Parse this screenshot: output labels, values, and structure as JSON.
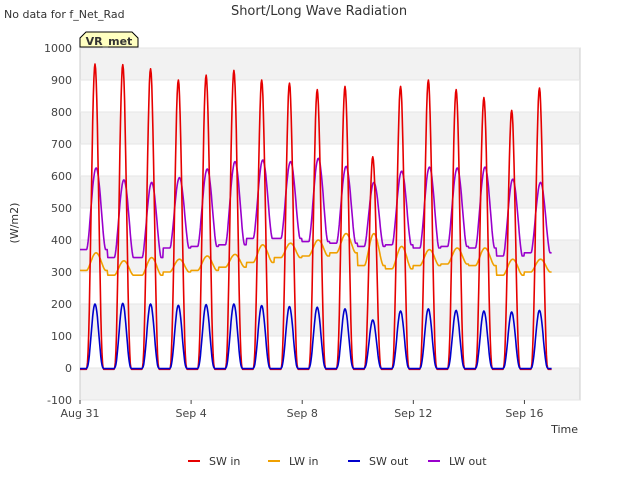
{
  "chart_data": {
    "type": "line",
    "title": "Short/Long Wave Radiation",
    "note": "No data for f_Net_Rad",
    "badge": "VR_met",
    "xlabel": "Time",
    "ylabel": "(W/m2)",
    "ylim": [
      -100,
      1000
    ],
    "yticks": [
      -100,
      0,
      100,
      200,
      300,
      400,
      500,
      600,
      700,
      800,
      900,
      1000
    ],
    "xlim": [
      "2023-08-31",
      "2023-09-18"
    ],
    "xticks": [
      "Aug 31",
      "Sep 4",
      "Sep 8",
      "Sep 12",
      "Sep 16"
    ],
    "grid": "horizontal bands",
    "legend_position": "bottom",
    "series": [
      {
        "name": "SW in",
        "color": "#e60000",
        "daily_peaks": [
          950,
          948,
          935,
          900,
          915,
          930,
          900,
          890,
          870,
          880,
          660,
          880,
          900,
          870,
          845,
          805,
          875
        ]
      },
      {
        "name": "LW in",
        "color": "#f0a000",
        "daily_peaks": [
          360,
          335,
          345,
          340,
          350,
          355,
          385,
          390,
          400,
          420,
          420,
          380,
          370,
          375,
          375,
          340,
          340
        ],
        "daily_mins": [
          305,
          290,
          290,
          300,
          305,
          315,
          330,
          345,
          350,
          360,
          320,
          310,
          320,
          325,
          320,
          290,
          300
        ]
      },
      {
        "name": "SW out",
        "color": "#0000cc",
        "daily_peaks": [
          200,
          202,
          200,
          196,
          198,
          200,
          195,
          192,
          190,
          185,
          150,
          178,
          185,
          180,
          178,
          175,
          180
        ]
      },
      {
        "name": "LW out",
        "color": "#9900cc",
        "daily_peaks": [
          625,
          588,
          580,
          595,
          622,
          645,
          650,
          645,
          655,
          630,
          580,
          615,
          628,
          625,
          628,
          590,
          580
        ],
        "daily_mins": [
          370,
          345,
          345,
          375,
          380,
          385,
          405,
          405,
          395,
          390,
          380,
          385,
          375,
          380,
          375,
          350,
          360
        ]
      }
    ]
  }
}
